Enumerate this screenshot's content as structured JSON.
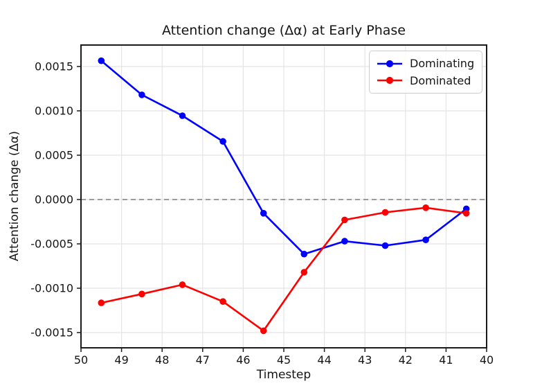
{
  "figure": {
    "background": "#ffffff",
    "text_color": "#151515",
    "grid_color": "#e4e4e4",
    "spine_color": "#1a1a1a",
    "zero_line_color": "#7f7f7f"
  },
  "chart_data": {
    "type": "line",
    "title": "Attention change (Δα) at Early Phase",
    "xlabel": "Timestep",
    "ylabel": "Attention change (Δα)",
    "x": [
      49.5,
      48.5,
      47.5,
      46.5,
      45.5,
      44.5,
      43.5,
      42.5,
      41.5,
      40.5
    ],
    "series": [
      {
        "name": "Dominating",
        "color": "#0000ff",
        "values": [
          0.001565,
          0.00118,
          0.000945,
          0.000655,
          -0.000155,
          -0.000615,
          -0.00047,
          -0.00052,
          -0.000455,
          -0.000105
        ]
      },
      {
        "name": "Dominated",
        "color": "#ff0000",
        "values": [
          -0.001165,
          -0.001065,
          -0.00096,
          -0.00115,
          -0.00148,
          -0.00082,
          -0.00023,
          -0.000145,
          -9.2e-05,
          -0.000155
        ]
      }
    ],
    "xlim": [
      50,
      40
    ],
    "ylim": [
      -0.001672,
      0.001742
    ],
    "xticks": [
      50,
      49,
      48,
      47,
      46,
      45,
      44,
      43,
      42,
      41,
      40
    ],
    "xtick_labels": [
      "50",
      "49",
      "48",
      "47",
      "46",
      "45",
      "44",
      "43",
      "42",
      "41",
      "40"
    ],
    "yticks": [
      0.0015,
      0.001,
      0.0005,
      0.0,
      -0.0005,
      -0.001,
      -0.0015
    ],
    "ytick_labels": [
      "0.0015",
      "0.0010",
      "0.0005",
      "0.0000",
      "-0.0005",
      "-0.0010",
      "-0.0015"
    ],
    "grid": true,
    "zero_line": {
      "y": 0,
      "style": "dashed",
      "color": "#7f7f7f"
    },
    "legend_position": "upper right",
    "marker": "circle"
  }
}
